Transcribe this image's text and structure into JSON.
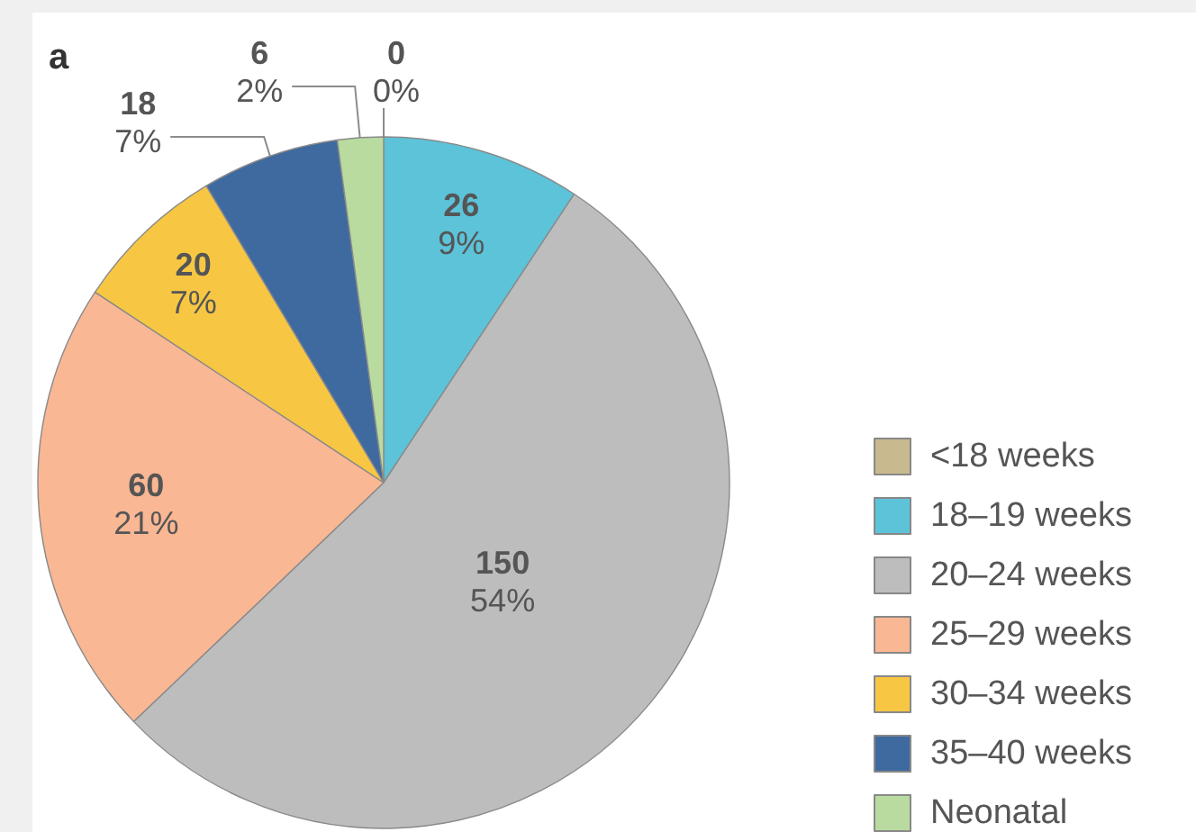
{
  "chart_data": {
    "type": "pie",
    "title": "a",
    "categories": [
      "<18 weeks",
      "18–19 weeks",
      "20–24 weeks",
      "25–29 weeks",
      "30–34 weeks",
      "35–40 weeks",
      "Neonatal"
    ],
    "values": [
      0,
      26,
      150,
      60,
      20,
      18,
      6
    ],
    "colors": [
      "#c9b98e",
      "#5cc3d9",
      "#bdbdbd",
      "#f9b794",
      "#f7c744",
      "#3f6a9f",
      "#b9dba0"
    ],
    "value_labels": [
      "0\n0%",
      "26\n9%",
      "150\n54%",
      "60\n21%",
      "20\n7%",
      "18\n7%",
      "6\n2%"
    ],
    "legend": "bottom right"
  }
}
